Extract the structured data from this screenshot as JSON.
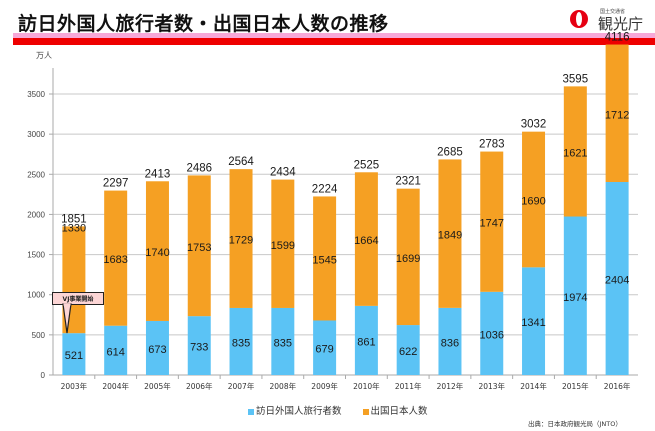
{
  "header": {
    "title": "訪日外国人旅行者数・出国日本人数の推移",
    "logo_small": "国土交通省",
    "logo_text": "観光庁"
  },
  "chart_data": {
    "type": "bar",
    "stacked": true,
    "title": "訪日外国人旅行者数・出国日本人数の推移",
    "ylabel": "万人",
    "xlabel": "",
    "ylim": [
      0,
      3800
    ],
    "yticks": [
      0,
      500,
      1000,
      1500,
      2000,
      2500,
      3000,
      3500
    ],
    "grid": true,
    "categories": [
      "2003年",
      "2004年",
      "2005年",
      "2006年",
      "2007年",
      "2008年",
      "2009年",
      "2010年",
      "2011年",
      "2012年",
      "2013年",
      "2014年",
      "2015年",
      "2016年"
    ],
    "series": [
      {
        "name": "訪日外国人旅行者数",
        "color": "#5bc3f5",
        "values": [
          521,
          614,
          673,
          733,
          835,
          835,
          679,
          861,
          622,
          836,
          1036,
          1341,
          1974,
          2404
        ]
      },
      {
        "name": "出国日本人数",
        "color": "#f5a023",
        "values": [
          1330,
          1683,
          1740,
          1753,
          1729,
          1599,
          1545,
          1664,
          1699,
          1849,
          1747,
          1690,
          1621,
          1712
        ]
      }
    ],
    "totals": [
      1851,
      2297,
      2413,
      2486,
      2564,
      2434,
      2224,
      2525,
      2321,
      2685,
      2783,
      3032,
      3595,
      4116
    ],
    "legend_position": "bottom",
    "annotations": [
      {
        "text": "VJ事業開始",
        "category": "2003年"
      }
    ],
    "source": "出典：日本政府観光局（JNTO）"
  }
}
